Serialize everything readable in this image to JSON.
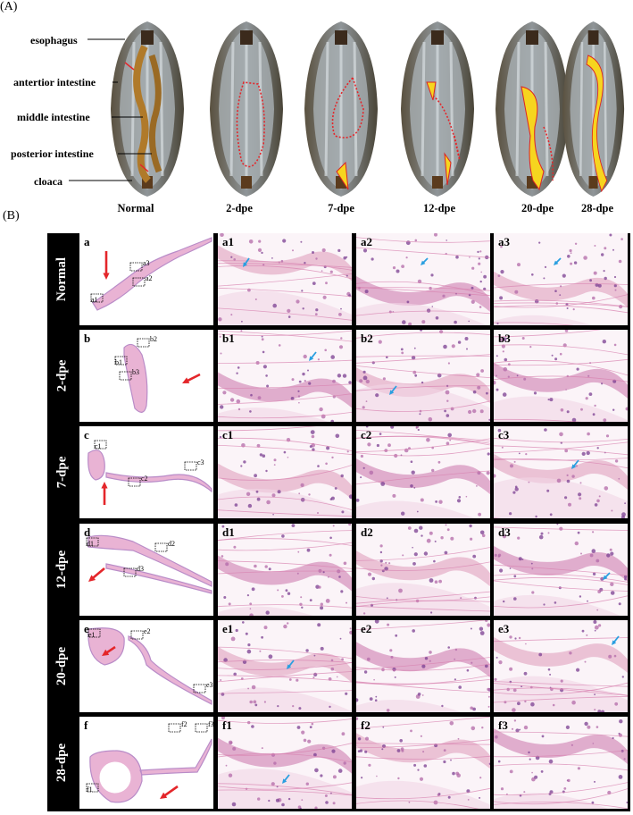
{
  "panel_A_label": "(A)",
  "panel_B_label": "(B)",
  "organ_labels": {
    "esophagus": "esophagus",
    "anterior": "antertior intestine",
    "middle": "middle intestine",
    "posterior": "posterior intestine",
    "cloaca": "cloaca"
  },
  "stages": [
    "Normal",
    "2-dpe",
    "7-dpe",
    "12-dpe",
    "20-dpe",
    "28-dpe"
  ],
  "rows": [
    {
      "label": "Normal",
      "overview": "a",
      "subs": [
        "a1",
        "a2",
        "a3"
      ]
    },
    {
      "label": "2-dpe",
      "overview": "b",
      "subs": [
        "b1",
        "b2",
        "b3"
      ]
    },
    {
      "label": "7-dpe",
      "overview": "c",
      "subs": [
        "c1",
        "c2",
        "c3"
      ]
    },
    {
      "label": "12-dpe",
      "overview": "d",
      "subs": [
        "d1",
        "d2",
        "d3"
      ]
    },
    {
      "label": "20-dpe",
      "overview": "e",
      "subs": [
        "e1",
        "e2",
        "e3"
      ]
    },
    {
      "label": "28-dpe",
      "overview": "f",
      "subs": [
        "f1",
        "f2",
        "f3"
      ]
    }
  ],
  "colors": {
    "tissue_pink": "#e9b3d4",
    "tissue_purple": "#b98cc8",
    "arrow_red": "#e4262a",
    "arrow_blue": "#2a9fe0",
    "gut_yellow": "#f6d51f"
  }
}
